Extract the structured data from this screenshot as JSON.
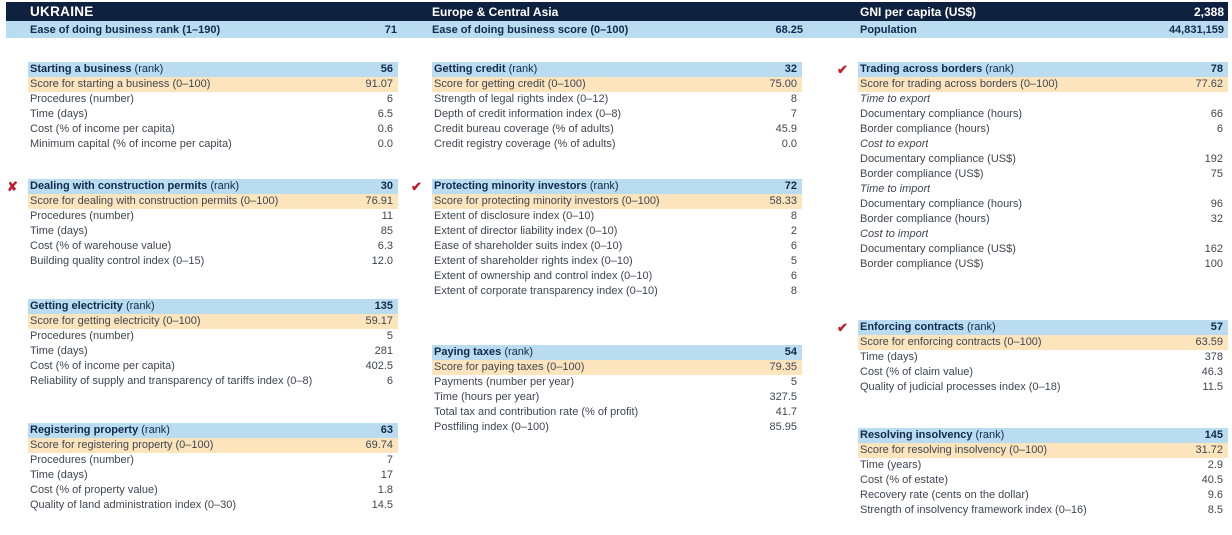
{
  "header": {
    "country": "UKRAINE",
    "region": "Europe & Central Asia",
    "gni_label": "GNI per capita (US$)",
    "gni_value": "2,388",
    "rank_label": "Ease of doing business rank (1–190)",
    "rank_value": "71",
    "score_label": "Ease of doing business score (0–100)",
    "score_value": "68.25",
    "population_label": "Population",
    "population_value": "44,831,159"
  },
  "colors": {
    "navy": "#0e2240",
    "lightblue": "#b9dcf0",
    "cream": "#fce5bc",
    "red": "#bf1e2e",
    "darktext": "#12294b",
    "bodytext": "#3f4652"
  },
  "marks": {
    "check": "✔",
    "cross": "✘"
  },
  "columns": [
    {
      "sections": [
        {
          "title": "Starting a business",
          "suffix": "(rank)",
          "rank": "56",
          "mark": "",
          "rows": [
            {
              "type": "score",
              "label": "Score for starting a business (0–100)",
              "value": "91.07"
            },
            {
              "type": "item",
              "label": "Procedures (number)",
              "value": "6"
            },
            {
              "type": "item",
              "label": "Time (days)",
              "value": "6.5"
            },
            {
              "type": "item",
              "label": "Cost (% of income per capita)",
              "value": "0.6"
            },
            {
              "type": "item",
              "label": "Minimum capital (% of income per capita)",
              "value": "0.0"
            }
          ]
        },
        {
          "title": "Dealing with construction permits",
          "suffix": "(rank)",
          "rank": "30",
          "mark": "cross",
          "rows": [
            {
              "type": "score",
              "label": "Score for dealing with construction permits (0–100)",
              "value": "76.91"
            },
            {
              "type": "item",
              "label": "Procedures (number)",
              "value": "11"
            },
            {
              "type": "item",
              "label": "Time (days)",
              "value": "85"
            },
            {
              "type": "item",
              "label": "Cost (% of warehouse value)",
              "value": "6.3"
            },
            {
              "type": "item",
              "label": "Building quality control index (0–15)",
              "value": "12.0"
            }
          ]
        },
        {
          "title": "Getting electricity",
          "suffix": "(rank)",
          "rank": "135",
          "mark": "",
          "rows": [
            {
              "type": "score",
              "label": "Score for getting electricity (0–100)",
              "value": "59.17"
            },
            {
              "type": "item",
              "label": "Procedures (number)",
              "value": "5"
            },
            {
              "type": "item",
              "label": "Time (days)",
              "value": "281"
            },
            {
              "type": "item",
              "label": "Cost (% of income per capita)",
              "value": "402.5"
            },
            {
              "type": "item",
              "label": "Reliability of supply and transparency of tariffs index (0–8)",
              "value": "6"
            }
          ]
        },
        {
          "title": "Registering property",
          "suffix": "(rank)",
          "rank": "63",
          "mark": "",
          "rows": [
            {
              "type": "score",
              "label": "Score for registering property (0–100)",
              "value": "69.74"
            },
            {
              "type": "item",
              "label": "Procedures (number)",
              "value": "7"
            },
            {
              "type": "item",
              "label": "Time (days)",
              "value": "17"
            },
            {
              "type": "item",
              "label": "Cost (% of property value)",
              "value": "1.8"
            },
            {
              "type": "item",
              "label": "Quality of land administration index (0–30)",
              "value": "14.5"
            }
          ]
        }
      ]
    },
    {
      "sections": [
        {
          "title": "Getting credit",
          "suffix": "(rank)",
          "rank": "32",
          "mark": "",
          "rows": [
            {
              "type": "score",
              "label": "Score for getting credit (0–100)",
              "value": "75.00"
            },
            {
              "type": "item",
              "label": "Strength of legal rights index (0–12)",
              "value": "8"
            },
            {
              "type": "item",
              "label": "Depth of credit information index (0–8)",
              "value": "7"
            },
            {
              "type": "item",
              "label": "Credit bureau coverage (% of adults)",
              "value": "45.9"
            },
            {
              "type": "item",
              "label": "Credit registry coverage (% of adults)",
              "value": "0.0"
            }
          ]
        },
        {
          "title": "Protecting minority investors",
          "suffix": "(rank)",
          "rank": "72",
          "mark": "check",
          "rows": [
            {
              "type": "score",
              "label": "Score for protecting minority investors (0–100)",
              "value": "58.33"
            },
            {
              "type": "item",
              "label": "Extent of disclosure index (0–10)",
              "value": "8"
            },
            {
              "type": "item",
              "label": "Extent of director liability index (0–10)",
              "value": "2"
            },
            {
              "type": "item",
              "label": "Ease of shareholder suits index (0–10)",
              "value": "6"
            },
            {
              "type": "item",
              "label": "Extent of shareholder rights index (0–10)",
              "value": "5"
            },
            {
              "type": "item",
              "label": "Extent of ownership and control index (0–10)",
              "value": "6"
            },
            {
              "type": "item",
              "label": "Extent of corporate transparency index (0–10)",
              "value": "8"
            }
          ]
        },
        {
          "title": "Paying taxes",
          "suffix": "(rank)",
          "rank": "54",
          "mark": "",
          "rows": [
            {
              "type": "score",
              "label": "Score for paying taxes (0–100)",
              "value": "79.35"
            },
            {
              "type": "item",
              "label": "Payments (number per year)",
              "value": "5"
            },
            {
              "type": "item",
              "label": "Time (hours per year)",
              "value": "327.5"
            },
            {
              "type": "item",
              "label": "Total tax and contribution rate (% of profit)",
              "value": "41.7"
            },
            {
              "type": "item",
              "label": "Postfiling index (0–100)",
              "value": "85.95"
            }
          ]
        }
      ]
    },
    {
      "sections": [
        {
          "title": "Trading across borders",
          "suffix": "(rank)",
          "rank": "78",
          "mark": "check",
          "rows": [
            {
              "type": "score",
              "label": "Score for trading across borders (0–100)",
              "value": "77.62"
            },
            {
              "type": "subhead",
              "label": "Time to export",
              "value": ""
            },
            {
              "type": "item",
              "label": "Documentary compliance (hours)",
              "value": "66"
            },
            {
              "type": "item",
              "label": "Border compliance (hours)",
              "value": "6"
            },
            {
              "type": "subhead",
              "label": "Cost to export",
              "value": ""
            },
            {
              "type": "item",
              "label": "Documentary compliance (US$)",
              "value": "192"
            },
            {
              "type": "item",
              "label": "Border compliance (US$)",
              "value": "75"
            },
            {
              "type": "subhead",
              "label": "Time to import",
              "value": ""
            },
            {
              "type": "item",
              "label": "Documentary compliance (hours)",
              "value": "96"
            },
            {
              "type": "item",
              "label": "Border compliance (hours)",
              "value": "32"
            },
            {
              "type": "subhead",
              "label": "Cost to import",
              "value": ""
            },
            {
              "type": "item",
              "label": "Documentary compliance (US$)",
              "value": "162"
            },
            {
              "type": "item",
              "label": "Border compliance (US$)",
              "value": "100"
            }
          ]
        },
        {
          "title": "Enforcing contracts",
          "suffix": "(rank)",
          "rank": "57",
          "mark": "check",
          "rows": [
            {
              "type": "score",
              "label": "Score for enforcing contracts (0–100)",
              "value": "63.59"
            },
            {
              "type": "item",
              "label": "Time (days)",
              "value": "378"
            },
            {
              "type": "item",
              "label": "Cost (% of claim value)",
              "value": "46.3"
            },
            {
              "type": "item",
              "label": "Quality of judicial processes index (0–18)",
              "value": "11.5"
            }
          ]
        },
        {
          "title": "Resolving insolvency",
          "suffix": "(rank)",
          "rank": "145",
          "mark": "",
          "rows": [
            {
              "type": "score",
              "label": "Score for resolving insolvency (0–100)",
              "value": "31.72"
            },
            {
              "type": "item",
              "label": "Time (years)",
              "value": "2.9"
            },
            {
              "type": "item",
              "label": "Cost (% of estate)",
              "value": "40.5"
            },
            {
              "type": "item",
              "label": "Recovery rate (cents on the dollar)",
              "value": "9.6"
            },
            {
              "type": "item",
              "label": "Strength of insolvency framework index (0–16)",
              "value": "8.5"
            }
          ]
        }
      ]
    }
  ]
}
